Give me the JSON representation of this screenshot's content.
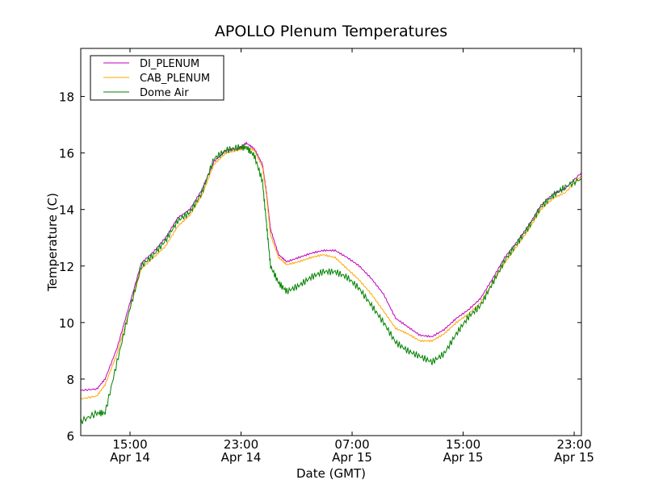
{
  "chart_data": {
    "type": "line",
    "title": "APOLLO Plenum Temperatures",
    "xlabel": "Date (GMT)",
    "ylabel": "Temperature (C)",
    "x_units": "hours since Apr 14 00:00 GMT",
    "xlim": [
      11.45,
      47.52
    ],
    "ylim": [
      6,
      19.7
    ],
    "grid": false,
    "legend_position": "top-left",
    "x_ticks": [
      {
        "value": 15,
        "time": "15:00",
        "date": "Apr 14"
      },
      {
        "value": 23,
        "time": "23:00",
        "date": "Apr 14"
      },
      {
        "value": 31,
        "time": "07:00",
        "date": "Apr 15"
      },
      {
        "value": 39,
        "time": "15:00",
        "date": "Apr 15"
      },
      {
        "value": 47,
        "time": "23:00",
        "date": "Apr 15"
      }
    ],
    "y_ticks": [
      6,
      8,
      10,
      12,
      14,
      16,
      18
    ],
    "x": [
      11.45,
      12.61,
      13.2,
      14.07,
      14.94,
      15.81,
      16.69,
      17.56,
      18.43,
      19.31,
      20.18,
      21.05,
      21.92,
      22.8,
      23.38,
      23.96,
      24.54,
      24.83,
      25.12,
      25.71,
      26.29,
      27.16,
      28.03,
      28.91,
      29.78,
      30.65,
      31.52,
      32.4,
      33.27,
      34.14,
      35.01,
      35.89,
      36.76,
      37.63,
      38.51,
      39.38,
      40.25,
      41.12,
      41.99,
      42.87,
      43.74,
      44.61,
      45.49,
      46.36,
      47.52
    ],
    "series": [
      {
        "name": "DI_PLENUM",
        "color": "#bf00bf",
        "values": [
          7.6,
          7.65,
          8.0,
          9.1,
          10.6,
          12.1,
          12.5,
          13.0,
          13.7,
          14.0,
          14.7,
          15.7,
          16.1,
          16.15,
          16.35,
          16.15,
          15.6,
          14.6,
          13.3,
          12.4,
          12.15,
          12.3,
          12.45,
          12.55,
          12.55,
          12.3,
          12.0,
          11.55,
          11.0,
          10.15,
          9.85,
          9.55,
          9.5,
          9.75,
          10.15,
          10.45,
          10.85,
          11.55,
          12.3,
          12.85,
          13.45,
          14.15,
          14.55,
          14.75,
          15.3
        ]
      },
      {
        "name": "CAB_PLENUM",
        "color": "#ffa500",
        "values": [
          7.3,
          7.4,
          7.8,
          8.9,
          10.4,
          11.9,
          12.3,
          12.7,
          13.4,
          13.8,
          14.5,
          15.6,
          16.0,
          16.1,
          16.2,
          16.1,
          15.5,
          14.5,
          13.1,
          12.3,
          12.05,
          12.15,
          12.3,
          12.4,
          12.3,
          11.9,
          11.5,
          11.0,
          10.4,
          9.8,
          9.6,
          9.35,
          9.35,
          9.6,
          10.0,
          10.3,
          10.7,
          11.4,
          12.1,
          12.7,
          13.3,
          14.0,
          14.4,
          14.6,
          15.2
        ]
      },
      {
        "name": "Dome Air",
        "color": "#008000",
        "values": [
          6.5,
          6.8,
          6.8,
          8.6,
          10.4,
          12.0,
          12.4,
          12.9,
          13.6,
          13.9,
          14.6,
          15.8,
          16.1,
          16.2,
          16.2,
          15.9,
          15.0,
          13.5,
          12.0,
          11.4,
          11.1,
          11.3,
          11.6,
          11.8,
          11.8,
          11.6,
          11.2,
          10.6,
          10.0,
          9.3,
          9.0,
          8.8,
          8.6,
          8.9,
          9.6,
          10.2,
          10.6,
          11.4,
          12.2,
          12.8,
          13.4,
          14.1,
          14.5,
          14.8,
          15.1
        ]
      }
    ]
  }
}
